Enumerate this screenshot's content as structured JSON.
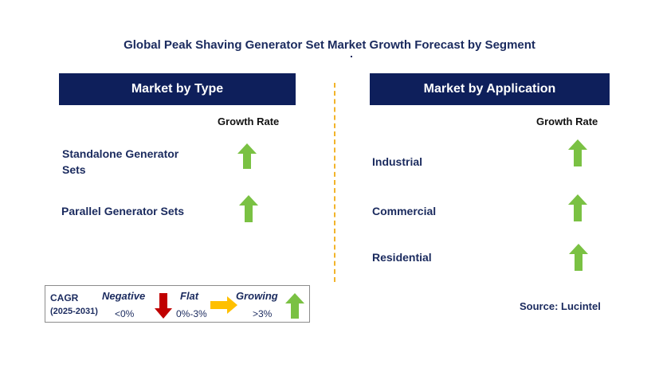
{
  "title": "Global Peak Shaving Generator Set Market Growth Forecast by Segment",
  "left_panel": {
    "header": "Market by Type",
    "growth_label": "Growth Rate",
    "items": [
      {
        "label": "Standalone Generator Sets",
        "line1": "Standalone Generator",
        "line2": "Sets",
        "trend": "growing"
      },
      {
        "label": "Parallel Generator Sets",
        "trend": "growing"
      }
    ]
  },
  "right_panel": {
    "header": "Market by Application",
    "growth_label": "Growth Rate",
    "items": [
      {
        "label": "Industrial",
        "trend": "growing"
      },
      {
        "label": "Commercial",
        "trend": "growing"
      },
      {
        "label": "Residential",
        "trend": "growing"
      }
    ]
  },
  "legend": {
    "cagr": "CAGR",
    "period": "(2025-2031)",
    "negative": {
      "label": "Negative",
      "range": "<0%",
      "color": "#c00000",
      "icon": "arrow-down-icon"
    },
    "flat": {
      "label": "Flat",
      "range": "0%-3%",
      "color": "#ffc000",
      "icon": "arrow-right-icon"
    },
    "growing": {
      "label": "Growing",
      "range": ">3%",
      "color": "#7ac143",
      "icon": "arrow-up-icon"
    }
  },
  "source": "Source: Lucintel",
  "colors": {
    "header_bg": "#0e1f5b",
    "text": "#1a2a5e",
    "divider": "#f2b42a",
    "growing": "#7ac143"
  }
}
